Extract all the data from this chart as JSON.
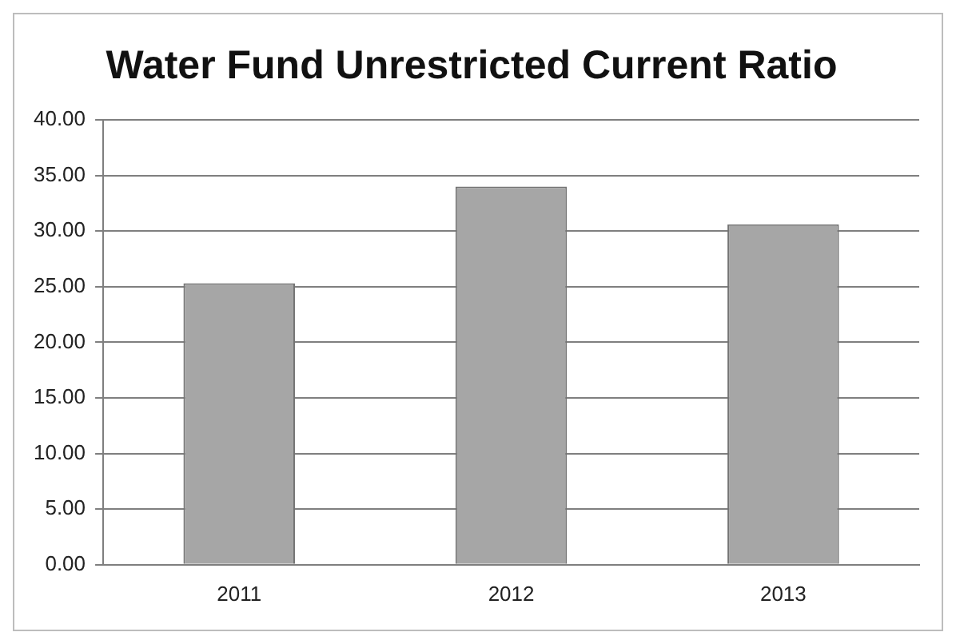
{
  "chart_data": {
    "type": "bar",
    "title": "Water Fund Unrestricted Current Ratio",
    "categories": [
      "2011",
      "2012",
      "2013"
    ],
    "values": [
      25.3,
      34.0,
      30.6
    ],
    "color": "#a6a6a6",
    "ylim": [
      0,
      40
    ],
    "yticks": [
      {
        "value": 0,
        "label": "0.00"
      },
      {
        "value": 5,
        "label": "5.00"
      },
      {
        "value": 10,
        "label": "10.00"
      },
      {
        "value": 15,
        "label": "15.00"
      },
      {
        "value": 20,
        "label": "20.00"
      },
      {
        "value": 25,
        "label": "25.00"
      },
      {
        "value": 30,
        "label": "30.00"
      },
      {
        "value": 35,
        "label": "35.00"
      },
      {
        "value": 40,
        "label": "40.00"
      }
    ],
    "grid": "y"
  }
}
